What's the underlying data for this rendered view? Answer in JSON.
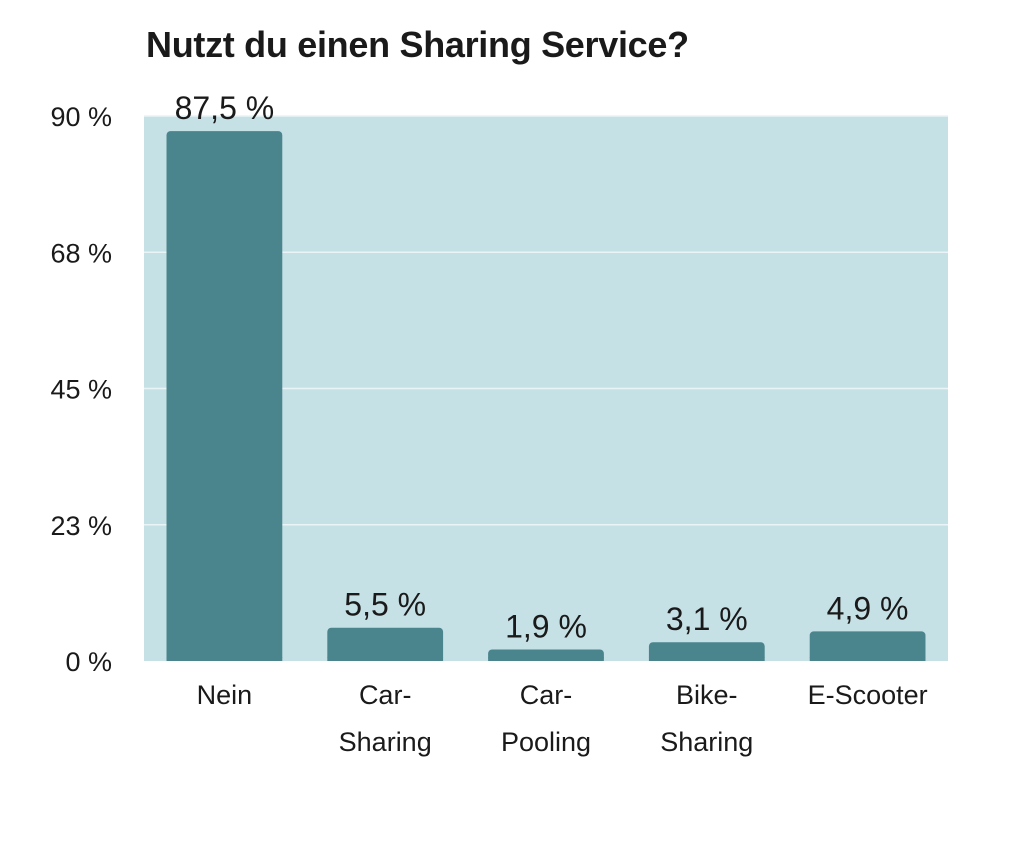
{
  "chart_data": {
    "type": "bar",
    "title": "Nutzt du einen Sharing Service?",
    "xlabel": "",
    "ylabel": "",
    "categories": [
      [
        "Nein"
      ],
      [
        "Car-",
        "Sharing"
      ],
      [
        "Car-",
        "Pooling"
      ],
      [
        "Bike-",
        "Sharing"
      ],
      [
        "E-Scooter"
      ]
    ],
    "values": [
      87.5,
      5.5,
      1.9,
      3.1,
      4.9
    ],
    "data_labels": [
      "87,5 %",
      "5,5 %",
      "1,9 %",
      "3,1 %",
      "4,9 %"
    ],
    "ylim": [
      0,
      90
    ],
    "yticks": [
      0,
      22.5,
      45,
      67.5,
      90
    ],
    "ytick_labels": [
      "0 %",
      "23 %",
      "45 %",
      "68 %",
      "90 %"
    ],
    "grid": true,
    "legend": "none",
    "colors": {
      "plot_background": "#c6e1e6",
      "bar": "#4a848d",
      "gridline": "#e9f4f6"
    }
  }
}
